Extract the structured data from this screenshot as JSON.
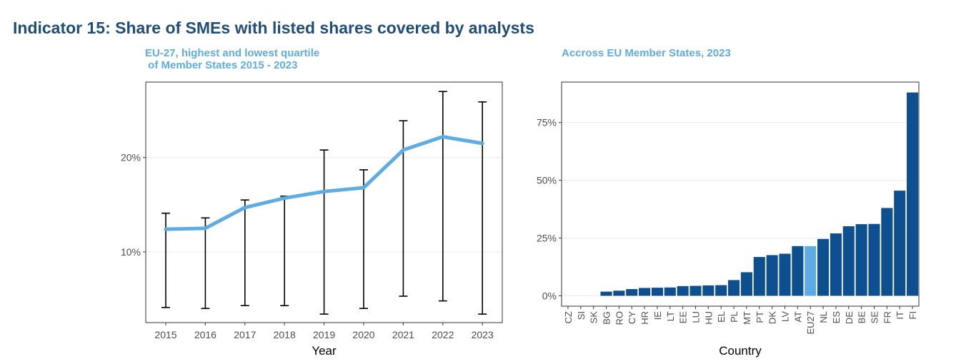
{
  "title": "Indicator 15: Share of SMEs with listed shares covered by analysts",
  "colors": {
    "title": "#1f4e79",
    "subtitle": "#5dade2",
    "line": "#5dade2",
    "bar": "#0d4f8f",
    "bar_highlight": "#5dade2",
    "axis": "#333333",
    "grid": "#ebebeb"
  },
  "chart_data": [
    {
      "type": "line",
      "title": "EU-27, highest and lowest quartile\n of Member States 2015 - 2023",
      "xlabel": "Year",
      "ylabel": "",
      "x": [
        "2015",
        "2016",
        "2017",
        "2018",
        "2019",
        "2020",
        "2021",
        "2022",
        "2023"
      ],
      "series": [
        {
          "values": [
            12.4,
            12.5,
            14.7,
            15.7,
            16.4,
            16.8,
            20.8,
            22.2,
            21.5
          ]
        }
      ],
      "error_bars": {
        "low": [
          4.1,
          4.0,
          4.3,
          4.3,
          3.4,
          4.0,
          5.3,
          4.8,
          3.4
        ],
        "high": [
          14.1,
          13.6,
          15.5,
          15.9,
          20.8,
          18.7,
          23.9,
          27.0,
          25.9
        ]
      },
      "ylim": [
        2.5,
        28.0
      ],
      "yticks": [
        10,
        20
      ],
      "ytick_labels": [
        "10%",
        "20%"
      ],
      "grid": true
    },
    {
      "type": "bar",
      "title": "Accross EU Member States, 2023",
      "xlabel": "Country",
      "ylabel": "",
      "categories": [
        "CZ",
        "SI",
        "SK",
        "BG",
        "RO",
        "CY",
        "HR",
        "IE",
        "LT",
        "EE",
        "LU",
        "HU",
        "EL",
        "PL",
        "MT",
        "PT",
        "DK",
        "LV",
        "AT",
        "EU27",
        "NL",
        "ES",
        "DE",
        "BE",
        "SE",
        "FR",
        "IT",
        "FI"
      ],
      "values": [
        0,
        0,
        0,
        1.8,
        2.2,
        2.9,
        3.4,
        3.5,
        3.6,
        4.2,
        4.3,
        4.5,
        4.6,
        6.8,
        10.2,
        16.8,
        17.6,
        18.2,
        21.5,
        21.5,
        24.6,
        27.0,
        30.1,
        31.0,
        31.1,
        38.0,
        45.5,
        88.0
      ],
      "highlight": "EU27",
      "ylim": [
        -4.5,
        92.5
      ],
      "yticks": [
        0,
        25,
        50,
        75
      ],
      "ytick_labels": [
        "0%",
        "25%",
        "50%",
        "75%"
      ],
      "grid": true
    }
  ]
}
